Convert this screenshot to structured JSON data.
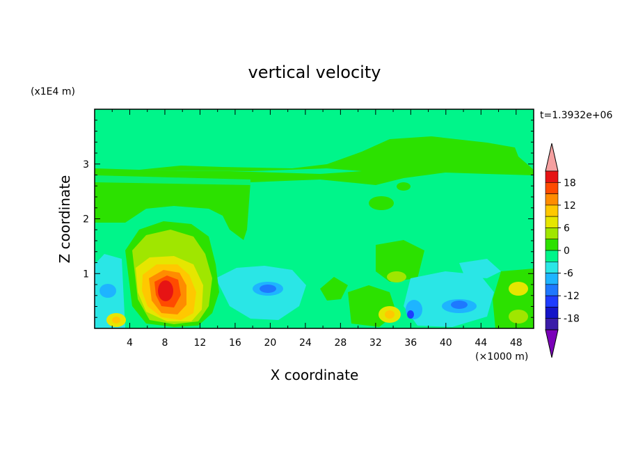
{
  "chart_data": {
    "type": "heatmap",
    "title": "vertical velocity",
    "xlabel": "X coordinate",
    "ylabel": "Z coordinate",
    "x_unit": "(×1000 m)",
    "y_unit": "(x1E4 m)",
    "time_label": "t=1.3932e+06",
    "xlim": [
      0,
      50
    ],
    "ylim": [
      0,
      4
    ],
    "xticks": [
      "4",
      "8",
      "12",
      "16",
      "20",
      "24",
      "28",
      "32",
      "36",
      "40",
      "44",
      "48"
    ],
    "yticks": [
      "1",
      "2",
      "3"
    ],
    "colorbar": {
      "levels": [
        -21,
        -18,
        -15,
        -12,
        -9,
        -6,
        -3,
        0,
        3,
        6,
        9,
        12,
        15,
        18,
        21
      ],
      "labels": [
        "18",
        "12",
        "6",
        "0",
        "-6",
        "-12",
        "-18"
      ],
      "colors": [
        "#7a00b8",
        "#3a1ca8",
        "#1414c8",
        "#1e3cff",
        "#1e78ff",
        "#1eb4ff",
        "#2ae6e6",
        "#00f58a",
        "#2ce100",
        "#a0e600",
        "#e6e600",
        "#ffc800",
        "#ff8c00",
        "#ff4b00",
        "#e61414",
        "#f5a0a0"
      ]
    },
    "features": [
      {
        "x": 9.5,
        "z": 0.9,
        "value": 16,
        "desc": "strong updraft core"
      },
      {
        "x": 19,
        "z": 0.7,
        "value": -9,
        "desc": "downdraft"
      },
      {
        "x": 37,
        "z": 0.3,
        "value": -12,
        "desc": "downdraft"
      },
      {
        "x": 41,
        "z": 0.4,
        "value": -10,
        "desc": "downdraft"
      },
      {
        "x": 34,
        "z": 0.3,
        "value": 9,
        "desc": "updraft"
      },
      {
        "x": 49,
        "z": 0.5,
        "value": 7,
        "desc": "updraft"
      },
      {
        "x": 2.5,
        "z": 0.15,
        "value": 8,
        "desc": "updraft"
      }
    ]
  }
}
